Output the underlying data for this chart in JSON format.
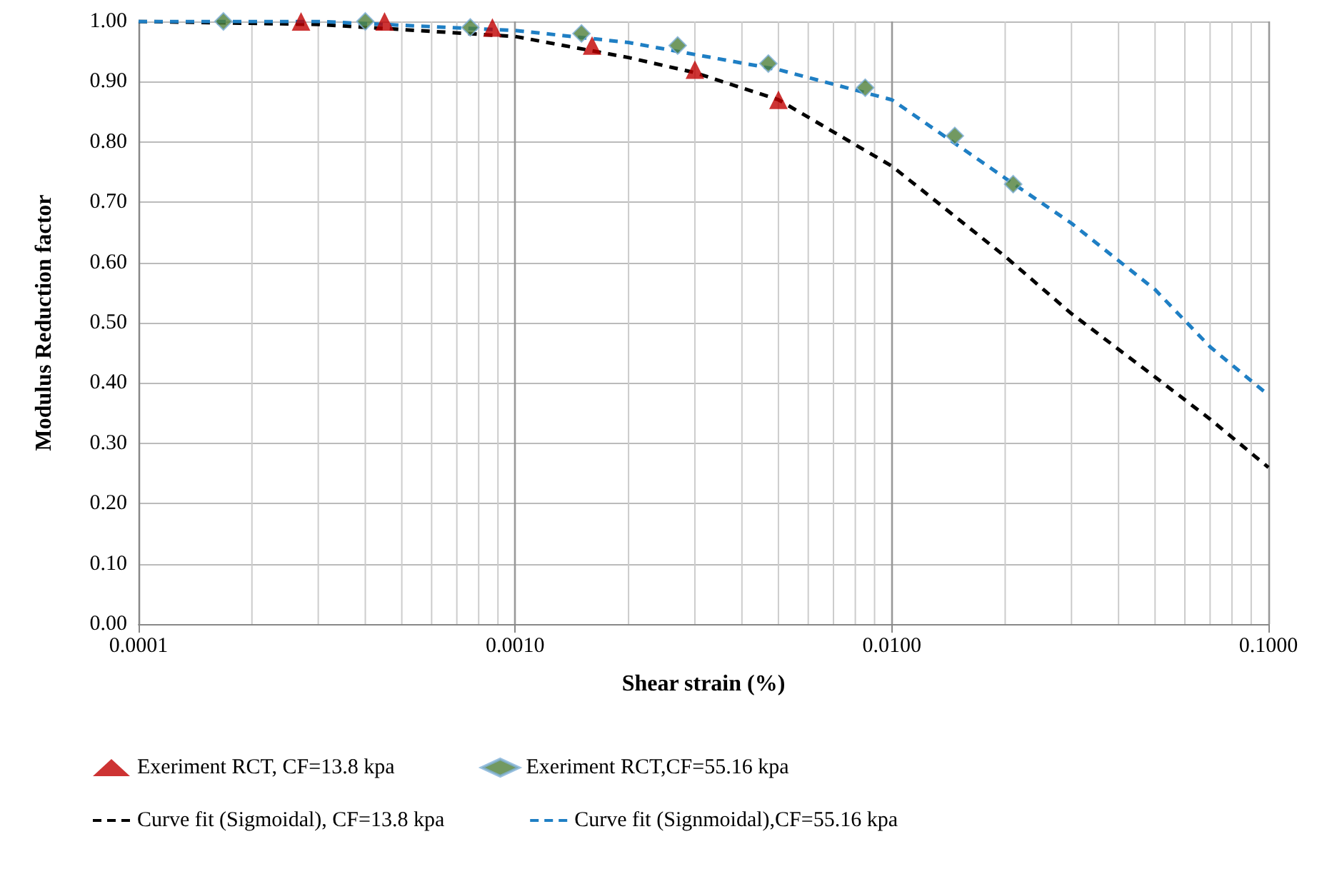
{
  "chart_data": {
    "type": "scatter",
    "xlabel": "Shear strain (%)",
    "ylabel": "Modulus Reduction factor",
    "log": "x",
    "grid": true,
    "legend": "bottom",
    "xlim": [
      0.0001,
      0.1
    ],
    "xticks": [
      {
        "value": 0.0001,
        "label": "0.0001"
      },
      {
        "value": 0.001,
        "label": "0.0010"
      },
      {
        "value": 0.01,
        "label": "0.0100"
      },
      {
        "value": 0.1,
        "label": "0.1000"
      }
    ],
    "ylim": [
      0,
      1
    ],
    "yticks": [
      {
        "value": 0,
        "label": "0.00"
      },
      {
        "value": 0.1,
        "label": "0.10"
      },
      {
        "value": 0.2,
        "label": "0.20"
      },
      {
        "value": 0.3,
        "label": "0.30"
      },
      {
        "value": 0.4,
        "label": "0.40"
      },
      {
        "value": 0.5,
        "label": "0.50"
      },
      {
        "value": 0.6,
        "label": "0.60"
      },
      {
        "value": 0.7,
        "label": "0.70"
      },
      {
        "value": 0.8,
        "label": "0.80"
      },
      {
        "value": 0.9,
        "label": "0.90"
      },
      {
        "value": 1,
        "label": "1.00"
      }
    ],
    "series": [
      {
        "name": "Exeriment RCT, CF=13.8 kpa",
        "type": "scatter",
        "marker": "triangle",
        "color": "#c00000",
        "x": [
          0.00027,
          0.00045,
          0.00087,
          0.0016,
          0.003,
          0.005
        ],
        "values": [
          1.0,
          1.0,
          0.99,
          0.96,
          0.92,
          0.87
        ]
      },
      {
        "name": "Exeriment RCT,CF=55.16 kpa",
        "type": "scatter",
        "marker": "diamond",
        "color": "#4f7f3a",
        "x": [
          0.000168,
          0.0004,
          0.00076,
          0.0015,
          0.0027,
          0.0047,
          0.0085,
          0.0147,
          0.021
        ],
        "values": [
          1.0,
          1.0,
          0.99,
          0.98,
          0.96,
          0.93,
          0.89,
          0.81,
          0.73
        ]
      },
      {
        "name": "Curve fit (Sigmoidal), CF=13.8 kpa",
        "type": "line",
        "marker": "none",
        "line_style": "dashed",
        "color": "#000000",
        "x": [
          0.0001,
          0.0003,
          0.001,
          0.002,
          0.003,
          0.005,
          0.01,
          0.02,
          0.03,
          0.05,
          0.07,
          0.1
        ],
        "values": [
          1.0,
          0.995,
          0.975,
          0.94,
          0.915,
          0.87,
          0.76,
          0.61,
          0.515,
          0.41,
          0.34,
          0.26
        ]
      },
      {
        "name": "Curve fit (Signmoidal),CF=55.16 kpa",
        "type": "line",
        "marker": "none",
        "line_style": "dashed",
        "color": "#1f7fc4",
        "x": [
          0.0001,
          0.0003,
          0.001,
          0.002,
          0.005,
          0.01,
          0.02,
          0.03,
          0.05,
          0.07,
          0.1
        ],
        "values": [
          1.0,
          1.0,
          0.985,
          0.965,
          0.92,
          0.87,
          0.74,
          0.665,
          0.555,
          0.46,
          0.38
        ]
      }
    ]
  }
}
